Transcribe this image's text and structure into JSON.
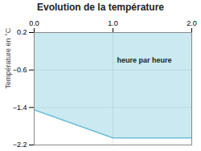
{
  "chart_data": {
    "type": "area",
    "title": "Evolution de la température",
    "ylabel": "Température en °C",
    "x": [
      0,
      1,
      2
    ],
    "values": [
      -1.45,
      -2.05,
      -2.05
    ],
    "color": "#6bbfd8",
    "xlim": [
      0,
      2
    ],
    "ylim": [
      -2.2,
      0.2
    ],
    "xticks": [
      0,
      1,
      2
    ],
    "yticks": [
      0.2,
      -0.6,
      -1.4,
      -2.2
    ],
    "grid": true,
    "annotations": [
      {
        "text": "heure par heure",
        "x": 1.05,
        "y": -0.45
      }
    ]
  }
}
